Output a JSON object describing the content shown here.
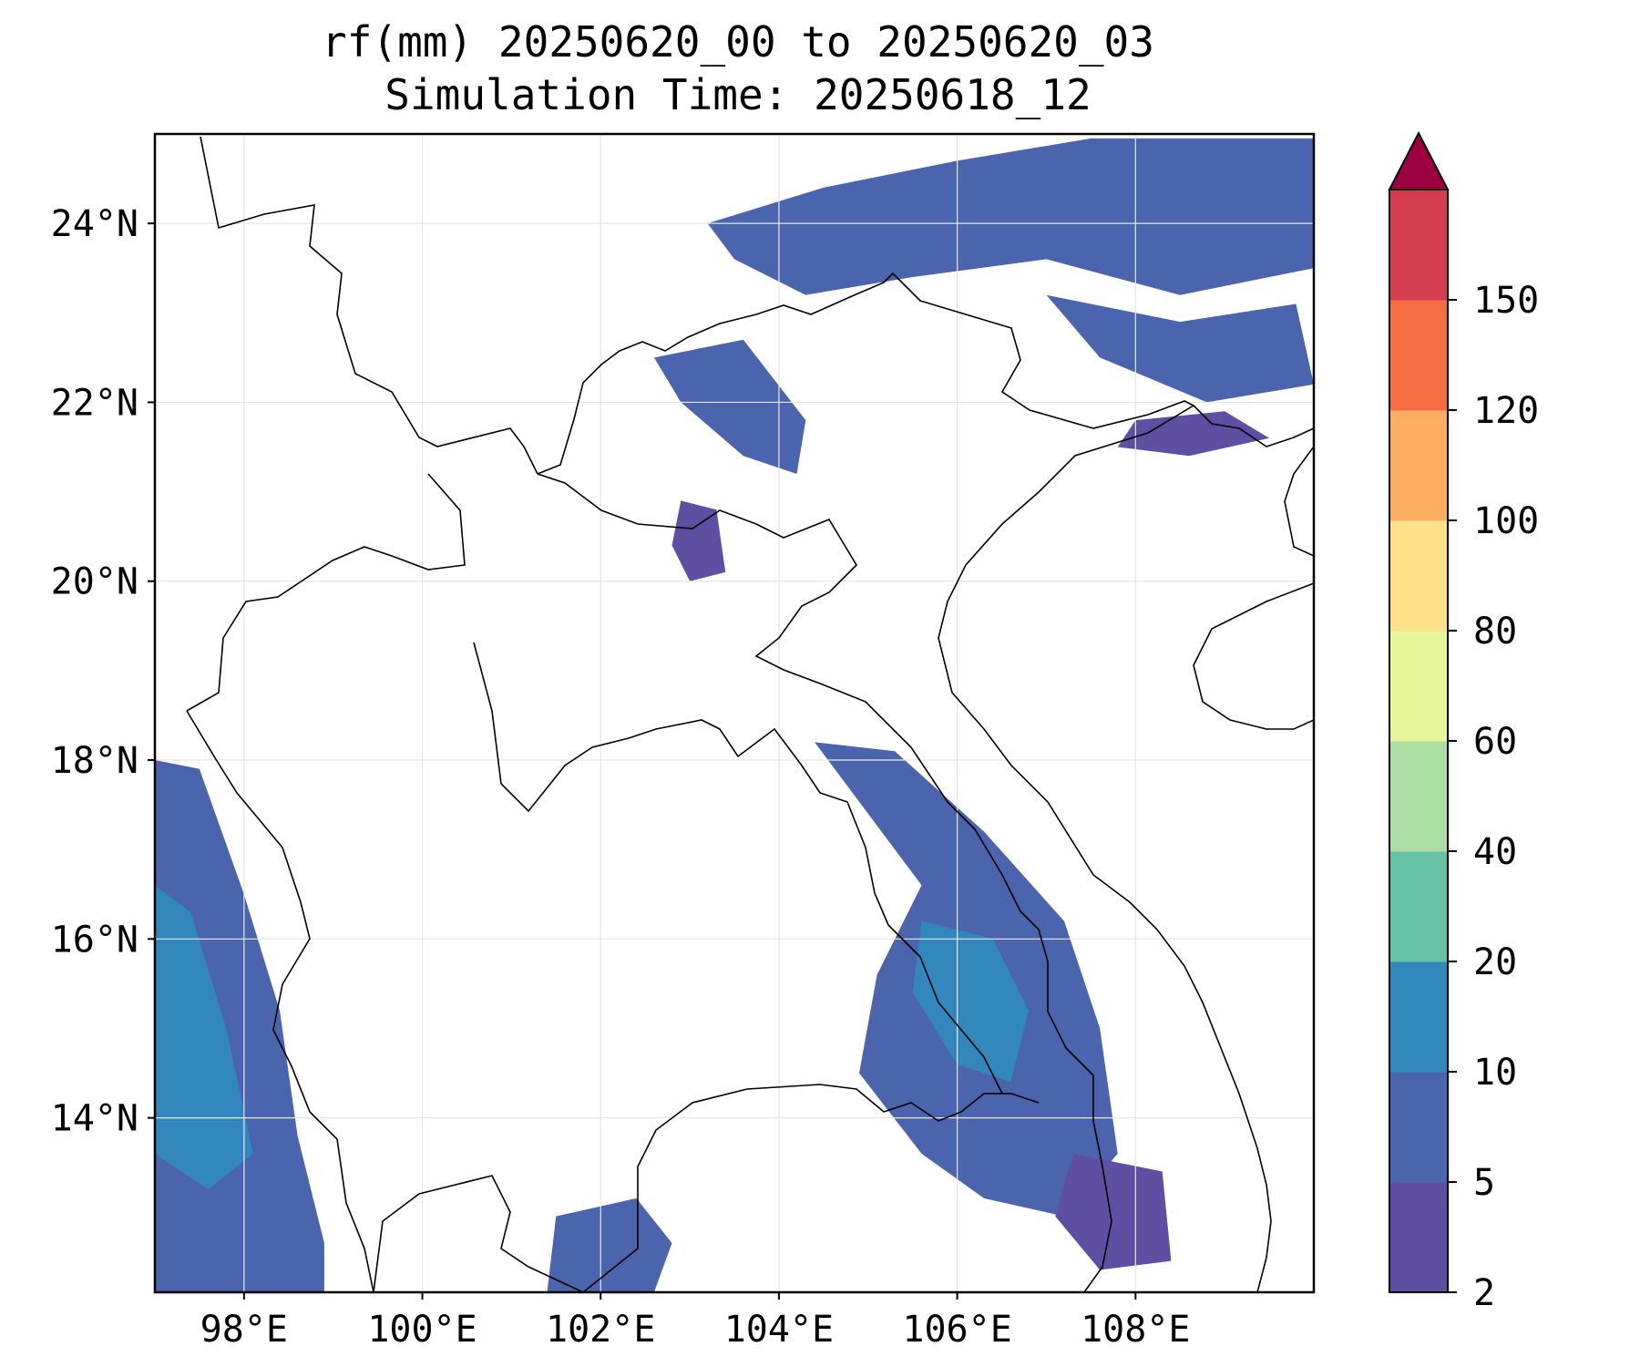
{
  "title": "rf(mm) 20250620_00 to 20250620_03",
  "subtitle": "Simulation Time: 20250618_12",
  "map": {
    "lon_range": [
      97.0,
      110.0
    ],
    "lat_range": [
      12.05,
      25.0
    ],
    "lon_ticks": [
      {
        "value": 98,
        "label": "98°E"
      },
      {
        "value": 100,
        "label": "100°E"
      },
      {
        "value": 102,
        "label": "102°E"
      },
      {
        "value": 104,
        "label": "104°E"
      },
      {
        "value": 106,
        "label": "106°E"
      },
      {
        "value": 108,
        "label": "108°E"
      }
    ],
    "lat_ticks": [
      {
        "value": 14,
        "label": "14°N"
      },
      {
        "value": 16,
        "label": "16°N"
      },
      {
        "value": 18,
        "label": "18°N"
      },
      {
        "value": 20,
        "label": "20°N"
      },
      {
        "value": 22,
        "label": "22°N"
      },
      {
        "value": 24,
        "label": "24°N"
      }
    ],
    "gridlines": true,
    "rain_regions": [
      {
        "name": "north-china-band",
        "level": 5,
        "pts": [
          [
            103.2,
            24.0
          ],
          [
            104.5,
            24.4
          ],
          [
            106.0,
            24.7
          ],
          [
            107.5,
            24.95
          ],
          [
            110.0,
            24.95
          ],
          [
            110.0,
            23.5
          ],
          [
            108.5,
            23.2
          ],
          [
            107.0,
            23.6
          ],
          [
            105.5,
            23.4
          ],
          [
            104.3,
            23.2
          ],
          [
            103.5,
            23.6
          ]
        ]
      },
      {
        "name": "guangxi-cells",
        "level": 5,
        "pts": [
          [
            107.0,
            23.2
          ],
          [
            108.5,
            22.9
          ],
          [
            109.8,
            23.1
          ],
          [
            110.0,
            22.2
          ],
          [
            108.8,
            22.0
          ],
          [
            107.6,
            22.5
          ]
        ]
      },
      {
        "name": "gulf-tonkin-coast",
        "level": 2,
        "pts": [
          [
            108.0,
            21.8
          ],
          [
            109.0,
            21.9
          ],
          [
            109.5,
            21.6
          ],
          [
            108.6,
            21.4
          ],
          [
            107.8,
            21.5
          ]
        ]
      },
      {
        "name": "north-vietnam-streaks",
        "level": 5,
        "pts": [
          [
            102.6,
            22.5
          ],
          [
            103.6,
            22.7
          ],
          [
            104.3,
            21.8
          ],
          [
            104.2,
            21.2
          ],
          [
            103.6,
            21.4
          ],
          [
            102.9,
            22.0
          ]
        ]
      },
      {
        "name": "north-laos-cell",
        "level": 2,
        "pts": [
          [
            102.9,
            20.9
          ],
          [
            103.3,
            20.8
          ],
          [
            103.4,
            20.1
          ],
          [
            103.0,
            20.0
          ],
          [
            102.8,
            20.4
          ]
        ]
      },
      {
        "name": "central-laos-vietnam",
        "level": 5,
        "pts": [
          [
            104.4,
            18.2
          ],
          [
            105.3,
            18.1
          ],
          [
            106.3,
            17.2
          ],
          [
            107.2,
            16.2
          ],
          [
            107.6,
            15.0
          ],
          [
            107.8,
            13.6
          ],
          [
            107.2,
            12.9
          ],
          [
            106.3,
            13.1
          ],
          [
            105.6,
            13.6
          ],
          [
            104.9,
            14.5
          ],
          [
            105.1,
            15.6
          ],
          [
            105.6,
            16.6
          ],
          [
            105.0,
            17.4
          ]
        ]
      },
      {
        "name": "central-highlands-core",
        "level": 10,
        "pts": [
          [
            105.6,
            16.2
          ],
          [
            106.4,
            16.0
          ],
          [
            106.8,
            15.2
          ],
          [
            106.6,
            14.4
          ],
          [
            106.0,
            14.6
          ],
          [
            105.5,
            15.4
          ]
        ]
      },
      {
        "name": "myanmar-west-band",
        "level": 5,
        "pts": [
          [
            97.0,
            18.0
          ],
          [
            97.5,
            17.9
          ],
          [
            98.0,
            16.5
          ],
          [
            98.4,
            15.2
          ],
          [
            98.6,
            13.8
          ],
          [
            98.9,
            12.6
          ],
          [
            98.9,
            12.05
          ],
          [
            97.0,
            12.05
          ]
        ]
      },
      {
        "name": "myanmar-core",
        "level": 10,
        "pts": [
          [
            97.0,
            16.6
          ],
          [
            97.4,
            16.3
          ],
          [
            97.8,
            15.0
          ],
          [
            98.1,
            13.6
          ],
          [
            97.6,
            13.2
          ],
          [
            97.0,
            13.6
          ]
        ]
      },
      {
        "name": "south-cambodia-cell",
        "level": 5,
        "pts": [
          [
            101.5,
            12.9
          ],
          [
            102.4,
            13.1
          ],
          [
            102.8,
            12.6
          ],
          [
            102.6,
            12.05
          ],
          [
            101.4,
            12.05
          ]
        ]
      },
      {
        "name": "east-vietnam-south",
        "level": 2,
        "pts": [
          [
            107.3,
            13.6
          ],
          [
            108.3,
            13.4
          ],
          [
            108.4,
            12.4
          ],
          [
            107.6,
            12.3
          ],
          [
            107.1,
            12.9
          ]
        ]
      }
    ]
  },
  "colorbar": {
    "levels": [
      2,
      5,
      10,
      20,
      40,
      60,
      80,
      100,
      120,
      150
    ],
    "tick_labels": [
      "2",
      "5",
      "10",
      "20",
      "40",
      "60",
      "80",
      "100",
      "120",
      "150"
    ],
    "colors": [
      "#5e4fa2",
      "#4a64ad",
      "#3288bd",
      "#66c2a5",
      "#abdda4",
      "#e6f598",
      "#fee08b",
      "#fdae61",
      "#f46d43",
      "#d53e4f"
    ],
    "extend_color": "#9e0142"
  }
}
